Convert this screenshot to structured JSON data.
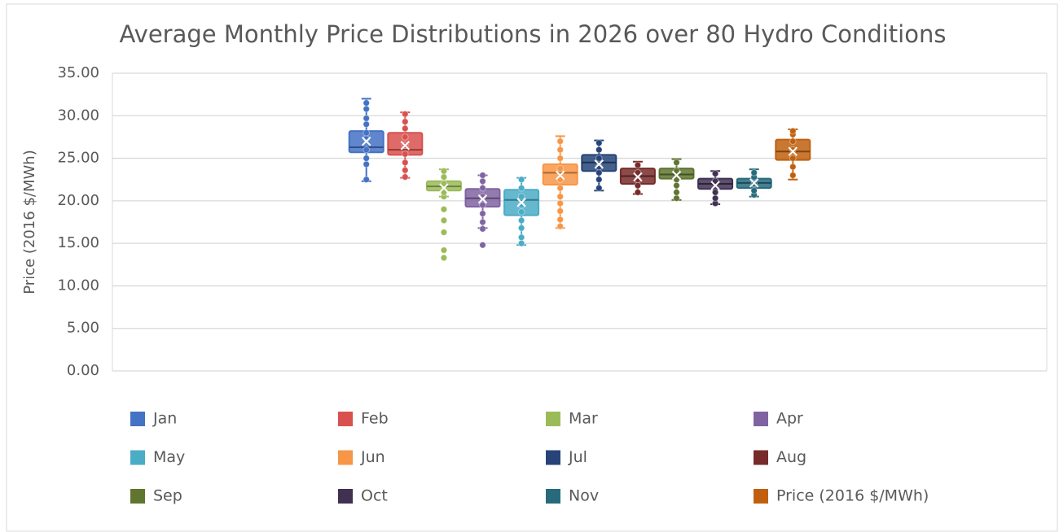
{
  "chart_data": {
    "type": "boxplot",
    "title": "Average Monthly Price Distributions in 2026 over 80 Hydro Conditions",
    "y_label": "Price  (2016 $/MWh)",
    "ylim": [
      0,
      35
    ],
    "yticks": [
      {
        "value": 0,
        "label": "0.00"
      },
      {
        "value": 5,
        "label": "5.00"
      },
      {
        "value": 10,
        "label": "10.00"
      },
      {
        "value": 15,
        "label": "15.00"
      },
      {
        "value": 20,
        "label": "20.00"
      },
      {
        "value": 25,
        "label": "25.00"
      },
      {
        "value": 30,
        "label": "30.00"
      },
      {
        "value": 35,
        "label": "35.00"
      }
    ],
    "grid": true,
    "series": [
      {
        "name": "Jan",
        "color": "#4472c4",
        "min": 22.3,
        "q1": 25.7,
        "median": 26.3,
        "q3": 28.2,
        "max": 32.0,
        "mean": 27.0,
        "points": [
          22.5,
          24.3,
          25.0,
          26.0,
          27.3,
          28.0,
          29.0,
          29.7,
          30.8,
          31.5
        ]
      },
      {
        "name": "Feb",
        "color": "#d9514e",
        "min": 22.7,
        "q1": 25.4,
        "median": 26.0,
        "q3": 28.0,
        "max": 30.4,
        "mean": 26.5,
        "points": [
          22.8,
          23.6,
          24.5,
          25.5,
          26.5,
          27.5,
          28.5,
          29.3,
          30.2
        ]
      },
      {
        "name": "Mar",
        "color": "#9bbb59",
        "min": 20.5,
        "q1": 21.2,
        "median": 21.7,
        "q3": 22.3,
        "max": 23.7,
        "mean": 21.5,
        "points": [
          13.3,
          14.2,
          16.3,
          17.7,
          19.0,
          20.5,
          21.0,
          22.0,
          22.8,
          23.5
        ]
      },
      {
        "name": "Apr",
        "color": "#8064a2",
        "min": 16.8,
        "q1": 19.3,
        "median": 20.3,
        "q3": 21.4,
        "max": 23.0,
        "mean": 20.2,
        "points": [
          14.8,
          16.7,
          17.5,
          18.5,
          19.5,
          20.5,
          21.5,
          22.3,
          23.0
        ]
      },
      {
        "name": "May",
        "color": "#4bacc6",
        "min": 14.8,
        "q1": 18.3,
        "median": 20.1,
        "q3": 21.3,
        "max": 22.7,
        "mean": 19.8,
        "points": [
          15.0,
          15.7,
          16.8,
          17.7,
          18.7,
          19.5,
          20.5,
          21.5,
          22.5
        ]
      },
      {
        "name": "Jun",
        "color": "#f79646",
        "min": 16.8,
        "q1": 21.9,
        "median": 23.3,
        "q3": 24.3,
        "max": 27.6,
        "mean": 23.0,
        "points": [
          17.0,
          17.8,
          18.8,
          19.7,
          20.5,
          21.5,
          22.5,
          23.8,
          25.0,
          26.0,
          27.0
        ]
      },
      {
        "name": "Jul",
        "color": "#264478",
        "min": 21.2,
        "q1": 23.5,
        "median": 24.5,
        "q3": 25.4,
        "max": 27.1,
        "mean": 24.3,
        "points": [
          21.5,
          22.5,
          23.3,
          24.0,
          25.0,
          26.0,
          26.8
        ]
      },
      {
        "name": "Aug",
        "color": "#772c2a",
        "min": 20.8,
        "q1": 22.0,
        "median": 22.9,
        "q3": 23.8,
        "max": 24.6,
        "mean": 22.8,
        "points": [
          21.0,
          21.8,
          22.5,
          23.3,
          24.2
        ]
      },
      {
        "name": "Sep",
        "color": "#5f7530",
        "min": 20.1,
        "q1": 22.6,
        "median": 23.1,
        "q3": 23.8,
        "max": 24.9,
        "mean": 23.0,
        "points": [
          20.3,
          21.0,
          21.8,
          22.5,
          23.5,
          24.5
        ]
      },
      {
        "name": "Oct",
        "color": "#403152",
        "min": 19.6,
        "q1": 21.4,
        "median": 22.0,
        "q3": 22.6,
        "max": 23.5,
        "mean": 21.8,
        "points": [
          19.7,
          20.3,
          21.0,
          22.3,
          23.2
        ]
      },
      {
        "name": "Nov",
        "color": "#276a7c",
        "min": 20.5,
        "q1": 21.5,
        "median": 22.1,
        "q3": 22.6,
        "max": 23.7,
        "mean": 22.1,
        "points": [
          20.7,
          21.2,
          22.0,
          22.8,
          23.3
        ]
      },
      {
        "name": "Price  (2016 $/MWh)",
        "color": "#c0600f",
        "min": 22.5,
        "q1": 24.8,
        "median": 25.8,
        "q3": 27.2,
        "max": 28.4,
        "mean": 25.8,
        "points": [
          23.0,
          24.0,
          25.0,
          26.0,
          27.0,
          27.8,
          28.2
        ]
      }
    ]
  }
}
